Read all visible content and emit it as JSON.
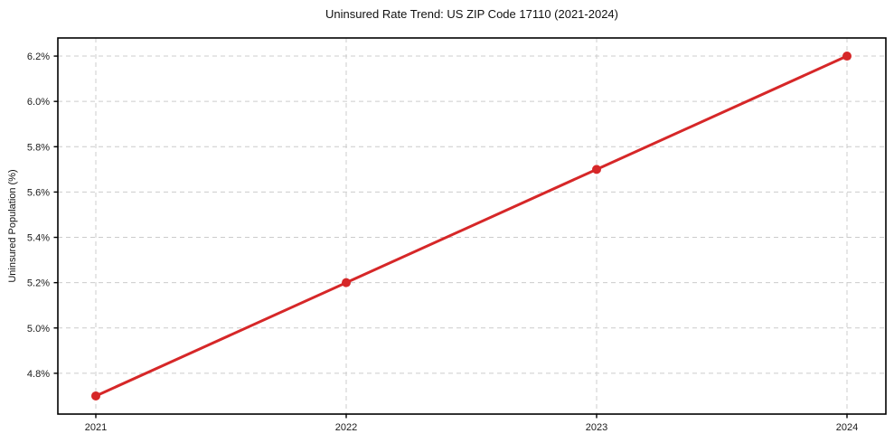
{
  "figure": {
    "background": "#ffffff"
  },
  "chart_data": {
    "type": "line",
    "title": "Uninsured Rate Trend: US ZIP Code 17110 (2021-2024)",
    "ylabel": "Uninsured Population (%)",
    "xlabel": "",
    "x": [
      2021,
      2022,
      2023,
      2024
    ],
    "x_tick_labels": [
      "2021",
      "2022",
      "2023",
      "2024"
    ],
    "series": [
      {
        "name": "Uninsured rate",
        "values": [
          4.7,
          5.2,
          5.7,
          6.2
        ],
        "color": "#d62728",
        "marker": "circle",
        "line_width": 3
      }
    ],
    "y_ticks": [
      4.8,
      5.0,
      5.2,
      5.4,
      5.6,
      5.8,
      6.0,
      6.2
    ],
    "y_tick_labels": [
      "4.8%",
      "5.0%",
      "5.2%",
      "5.4%",
      "5.6%",
      "5.8%",
      "6.0%",
      "6.2%"
    ],
    "ylim": [
      4.62,
      6.28
    ],
    "grid": true,
    "grid_style": "dashed",
    "grid_color": "#cccccc",
    "axis_color": "#000000",
    "legend_position": "none"
  }
}
